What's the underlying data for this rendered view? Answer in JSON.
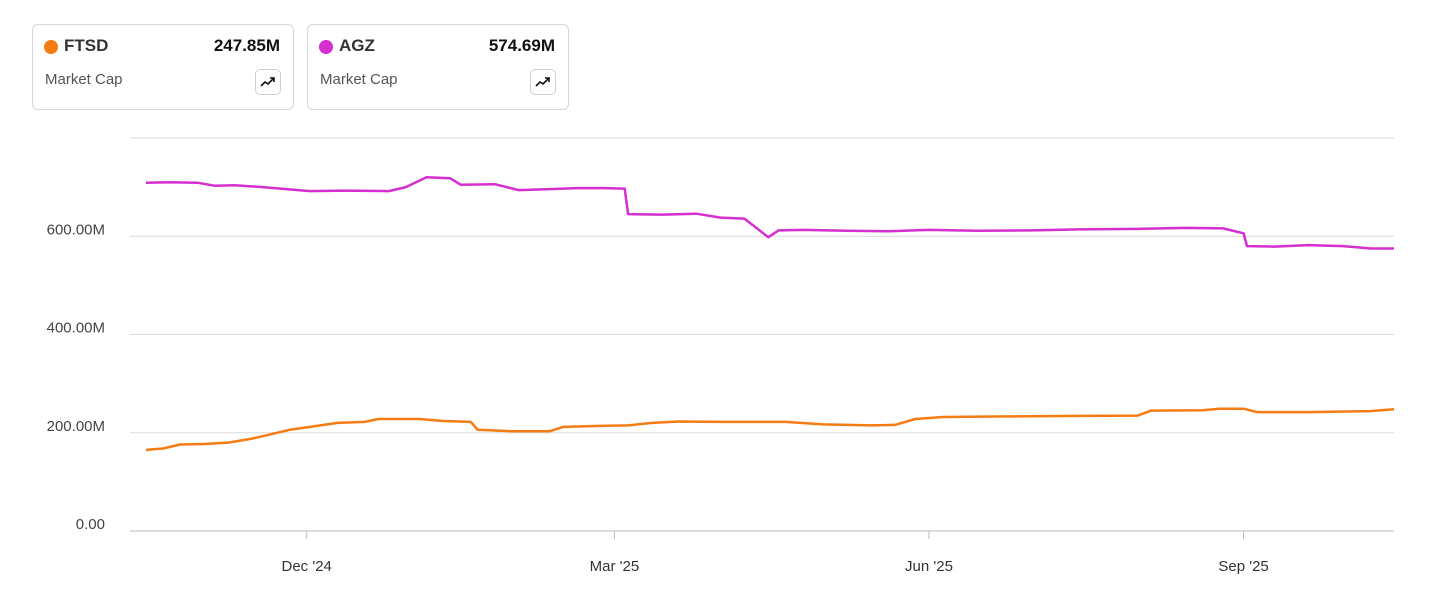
{
  "cards": [
    {
      "ticker": "FTSD",
      "value": "247.85M",
      "metric": "Market Cap",
      "color": "#f57c12",
      "icon": "trend-up-icon"
    },
    {
      "ticker": "AGZ",
      "value": "574.69M",
      "metric": "Market Cap",
      "color": "#d62fd0",
      "icon": "trend-up-icon"
    }
  ],
  "chart_data": {
    "type": "line",
    "ylim": [
      0,
      800
    ],
    "grid": true,
    "y_ticks": [
      "0.00",
      "200.00M",
      "400.00M",
      "600.00M"
    ],
    "y_tick_values": [
      0,
      200,
      400,
      600
    ],
    "x_ticks": [
      "Dec '24",
      "Mar '25",
      "Jun '25",
      "Sep '25"
    ],
    "x_tick_dates": [
      "2024-12-01",
      "2025-03-01",
      "2025-06-01",
      "2025-09-01"
    ],
    "x_range": [
      "2024-10-15",
      "2025-10-15"
    ],
    "series": [
      {
        "name": "AGZ",
        "color": "#d62fd0",
        "points": [
          [
            "2024-10-15",
            709
          ],
          [
            "2024-10-22",
            710
          ],
          [
            "2024-10-30",
            709
          ],
          [
            "2024-11-04",
            703
          ],
          [
            "2024-11-10",
            704
          ],
          [
            "2024-11-18",
            700
          ],
          [
            "2024-11-25",
            696
          ],
          [
            "2024-12-02",
            692
          ],
          [
            "2024-12-12",
            693
          ],
          [
            "2024-12-25",
            692
          ],
          [
            "2024-12-30",
            700
          ],
          [
            "2025-01-05",
            720
          ],
          [
            "2025-01-12",
            718
          ],
          [
            "2025-01-15",
            705
          ],
          [
            "2025-01-25",
            706
          ],
          [
            "2025-02-01",
            694
          ],
          [
            "2025-02-10",
            696
          ],
          [
            "2025-02-18",
            698
          ],
          [
            "2025-02-26",
            698
          ],
          [
            "2025-03-04",
            697
          ],
          [
            "2025-03-05",
            645
          ],
          [
            "2025-03-15",
            644
          ],
          [
            "2025-03-25",
            646
          ],
          [
            "2025-04-01",
            638
          ],
          [
            "2025-04-08",
            636
          ],
          [
            "2025-04-15",
            598
          ],
          [
            "2025-04-18",
            612
          ],
          [
            "2025-04-25",
            613
          ],
          [
            "2025-05-08",
            611
          ],
          [
            "2025-05-20",
            610
          ],
          [
            "2025-06-01",
            613
          ],
          [
            "2025-06-15",
            611
          ],
          [
            "2025-07-01",
            612
          ],
          [
            "2025-07-15",
            614
          ],
          [
            "2025-08-01",
            615
          ],
          [
            "2025-08-15",
            617
          ],
          [
            "2025-08-26",
            616
          ],
          [
            "2025-09-01",
            606
          ],
          [
            "2025-09-02",
            580
          ],
          [
            "2025-09-10",
            579
          ],
          [
            "2025-09-20",
            582
          ],
          [
            "2025-09-30",
            580
          ],
          [
            "2025-10-05",
            577
          ],
          [
            "2025-10-08",
            575
          ],
          [
            "2025-10-15",
            575
          ]
        ]
      },
      {
        "name": "FTSD",
        "color": "#f57c12",
        "points": [
          [
            "2024-10-15",
            165
          ],
          [
            "2024-10-20",
            168
          ],
          [
            "2024-10-25",
            176
          ],
          [
            "2024-11-01",
            177
          ],
          [
            "2024-11-08",
            180
          ],
          [
            "2024-11-15",
            188
          ],
          [
            "2024-11-20",
            196
          ],
          [
            "2024-11-26",
            206
          ],
          [
            "2024-12-02",
            212
          ],
          [
            "2024-12-10",
            220
          ],
          [
            "2024-12-18",
            222
          ],
          [
            "2024-12-22",
            228
          ],
          [
            "2025-01-03",
            228
          ],
          [
            "2025-01-10",
            224
          ],
          [
            "2025-01-18",
            222
          ],
          [
            "2025-01-20",
            206
          ],
          [
            "2025-01-30",
            203
          ],
          [
            "2025-02-10",
            203
          ],
          [
            "2025-02-14",
            212
          ],
          [
            "2025-02-25",
            214
          ],
          [
            "2025-03-05",
            215
          ],
          [
            "2025-03-12",
            220
          ],
          [
            "2025-03-20",
            223
          ],
          [
            "2025-04-01",
            222
          ],
          [
            "2025-04-20",
            222
          ],
          [
            "2025-05-01",
            217
          ],
          [
            "2025-05-15",
            215
          ],
          [
            "2025-05-22",
            216
          ],
          [
            "2025-05-28",
            228
          ],
          [
            "2025-06-05",
            232
          ],
          [
            "2025-06-20",
            233
          ],
          [
            "2025-07-10",
            234
          ],
          [
            "2025-08-01",
            235
          ],
          [
            "2025-08-05",
            245
          ],
          [
            "2025-08-20",
            246
          ],
          [
            "2025-08-25",
            249
          ],
          [
            "2025-09-01",
            249
          ],
          [
            "2025-09-05",
            242
          ],
          [
            "2025-09-20",
            242
          ],
          [
            "2025-10-08",
            244
          ],
          [
            "2025-10-15",
            248
          ]
        ]
      }
    ]
  }
}
